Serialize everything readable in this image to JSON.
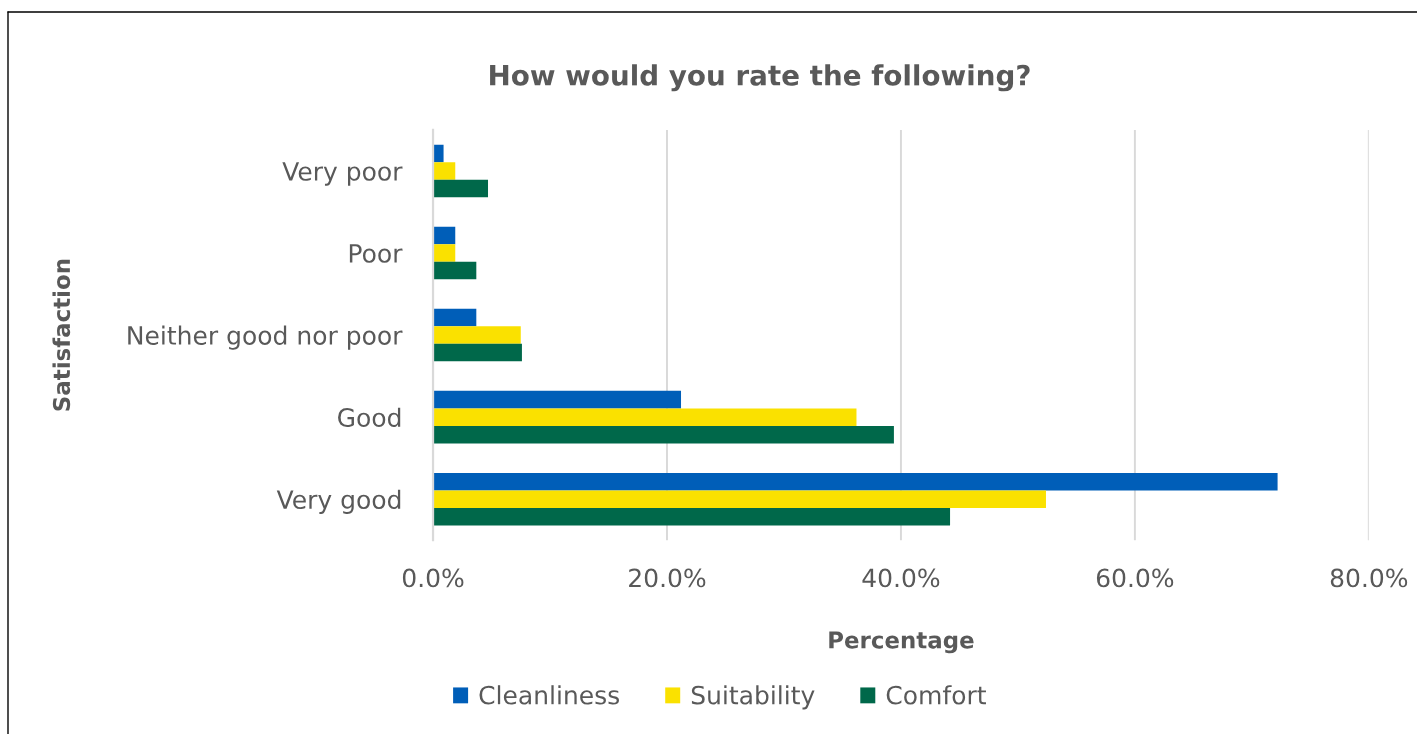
{
  "chart_data": {
    "type": "bar",
    "orientation": "horizontal",
    "title": "How would you rate the following?",
    "xlabel": "Percentage",
    "ylabel": "Satisfaction",
    "categories": [
      "Very poor",
      "Poor",
      "Neither good nor poor",
      "Good",
      "Very good"
    ],
    "series": [
      {
        "name": "Cleanliness",
        "color": "#005eb8",
        "values": [
          0.9,
          1.9,
          3.7,
          21.2,
          72.2
        ]
      },
      {
        "name": "Suitability",
        "color": "#fae100",
        "values": [
          1.9,
          1.9,
          7.5,
          36.2,
          52.4
        ]
      },
      {
        "name": "Comfort",
        "color": "#00684a",
        "values": [
          4.7,
          3.7,
          7.6,
          39.4,
          44.2
        ]
      }
    ],
    "xlim": [
      0,
      80
    ],
    "xticks": [
      {
        "value": 0,
        "label": "0.0%"
      },
      {
        "value": 20,
        "label": "20.0%"
      },
      {
        "value": 40,
        "label": "40.0%"
      },
      {
        "value": 60,
        "label": "60.0%"
      },
      {
        "value": 80,
        "label": "80.0%"
      }
    ],
    "grid": "x",
    "legend": "bottom"
  }
}
